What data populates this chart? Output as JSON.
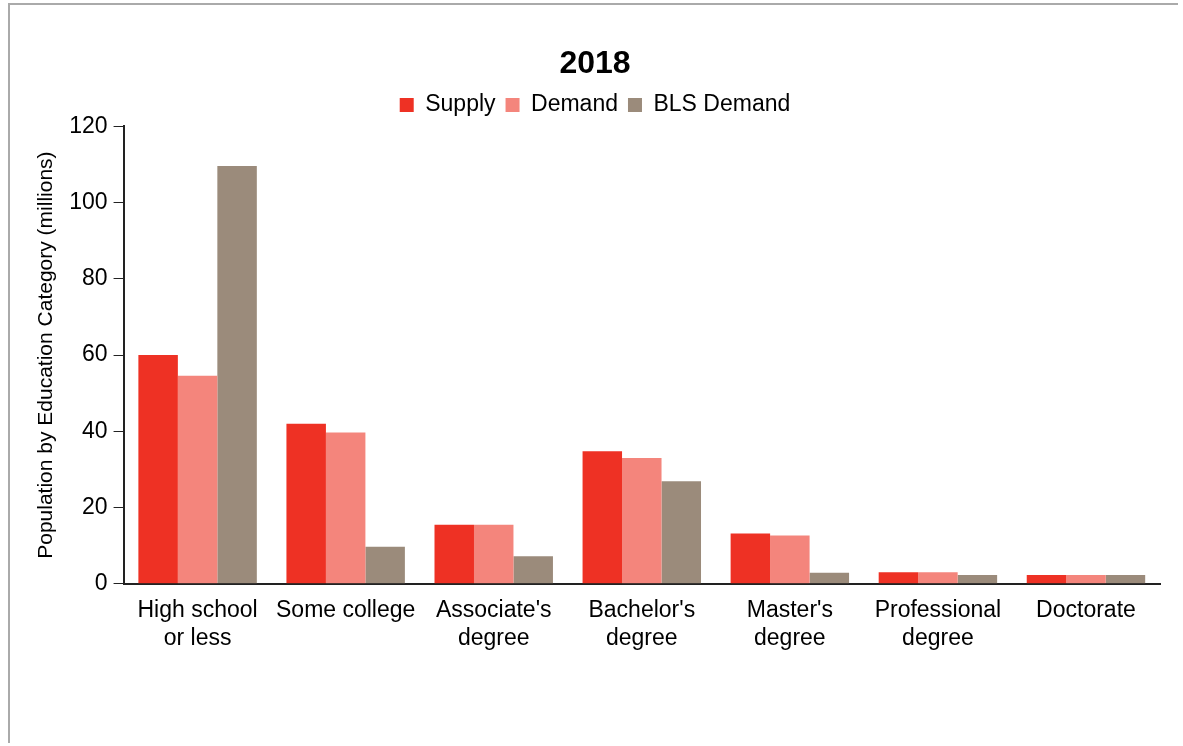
{
  "chart_data": {
    "type": "bar",
    "title": "2018",
    "ylabel": "Population by Education Category (millions)",
    "categories": [
      "High school or less",
      "Some college",
      "Associate's degree",
      "Bachelor's degree",
      "Master's degree",
      "Professional degree",
      "Doctorate"
    ],
    "series": [
      {
        "name": "Supply",
        "color": "#ee3124",
        "values": [
          60,
          42,
          15.5,
          34.8,
          13.2,
          3,
          2.3
        ]
      },
      {
        "name": "Demand",
        "color": "#f4857c",
        "values": [
          54.6,
          39.7,
          15.5,
          33,
          12.7,
          3,
          2.3
        ]
      },
      {
        "name": "BLS Demand",
        "color": "#9b8b7b",
        "values": [
          109.6,
          9.7,
          7.2,
          26.9,
          2.9,
          2.3,
          2.3
        ]
      }
    ],
    "ylim": [
      0,
      120
    ],
    "yticks": [
      0,
      20,
      40,
      60,
      80,
      100,
      120
    ],
    "grid": false,
    "legend": "top"
  }
}
